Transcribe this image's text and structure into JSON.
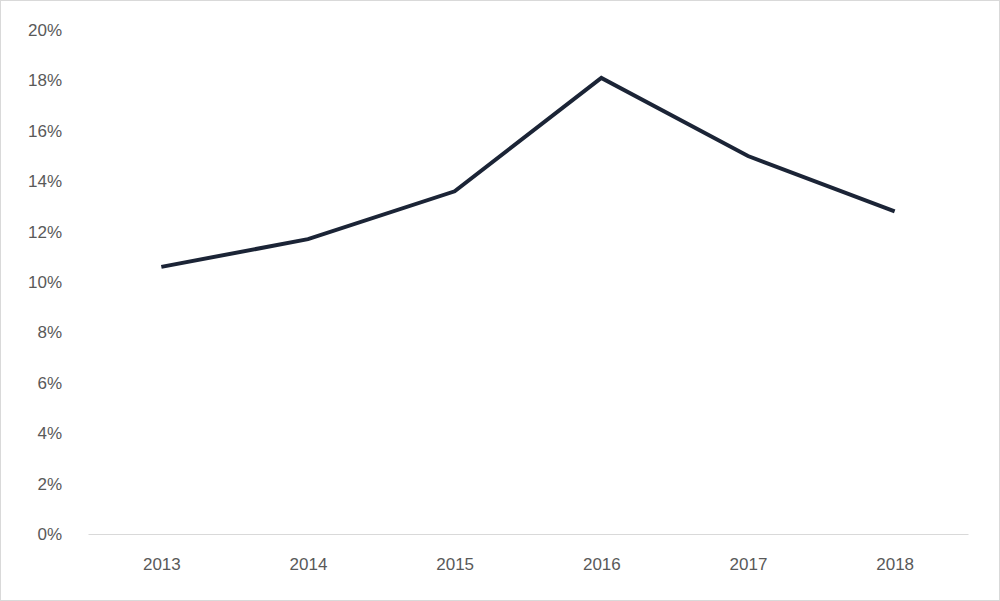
{
  "chart_data": {
    "type": "line",
    "categories": [
      "2013",
      "2014",
      "2015",
      "2016",
      "2017",
      "2018"
    ],
    "values": [
      10.6,
      11.7,
      13.6,
      18.1,
      15.0,
      12.8
    ],
    "color": "#1b2436",
    "ylim": [
      0,
      20
    ],
    "yticks": [
      {
        "value": 0,
        "label": "0%"
      },
      {
        "value": 2,
        "label": "2%"
      },
      {
        "value": 4,
        "label": "4%"
      },
      {
        "value": 6,
        "label": "6%"
      },
      {
        "value": 8,
        "label": "8%"
      },
      {
        "value": 10,
        "label": "10%"
      },
      {
        "value": 12,
        "label": "12%"
      },
      {
        "value": 14,
        "label": "14%"
      },
      {
        "value": 16,
        "label": "16%"
      },
      {
        "value": 18,
        "label": "18%"
      },
      {
        "value": 20,
        "label": "20%"
      }
    ],
    "grid": false
  }
}
